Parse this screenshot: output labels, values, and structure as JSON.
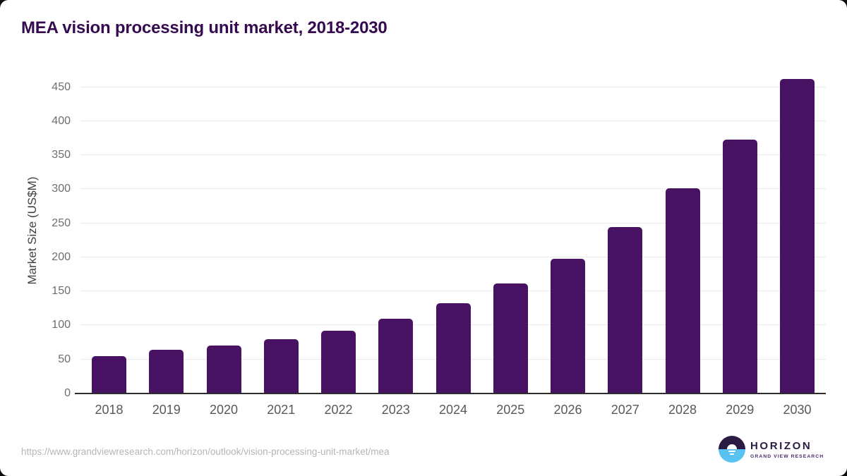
{
  "title": "MEA vision processing unit market, 2018-2030",
  "chart_data": {
    "type": "bar",
    "title": "MEA vision processing unit market, 2018-2030",
    "categories": [
      "2018",
      "2019",
      "2020",
      "2021",
      "2022",
      "2023",
      "2024",
      "2025",
      "2026",
      "2027",
      "2028",
      "2029",
      "2030"
    ],
    "values": [
      55,
      64,
      70,
      80,
      92,
      110,
      133,
      162,
      198,
      244,
      301,
      373,
      462
    ],
    "xlabel": "",
    "ylabel": "Market Size (US$M)",
    "ylim": [
      0,
      450
    ],
    "yticks": [
      0,
      50,
      100,
      150,
      200,
      250,
      300,
      350,
      400,
      450
    ],
    "grid": true,
    "legend": "none"
  },
  "colors": {
    "bar": "#481263",
    "title": "#350a50",
    "gridline": "#eaeaea",
    "axis_line": "#2d2d2d",
    "logo_dark": "#2b1b43",
    "logo_blue": "#58c3f0"
  },
  "footer": {
    "source_url": "https://www.grandviewresearch.com/horizon/outlook/vision-processing-unit-market/mea",
    "logo": {
      "brand": "HORIZON",
      "sub_brand": "GRAND VIEW RESEARCH"
    }
  }
}
